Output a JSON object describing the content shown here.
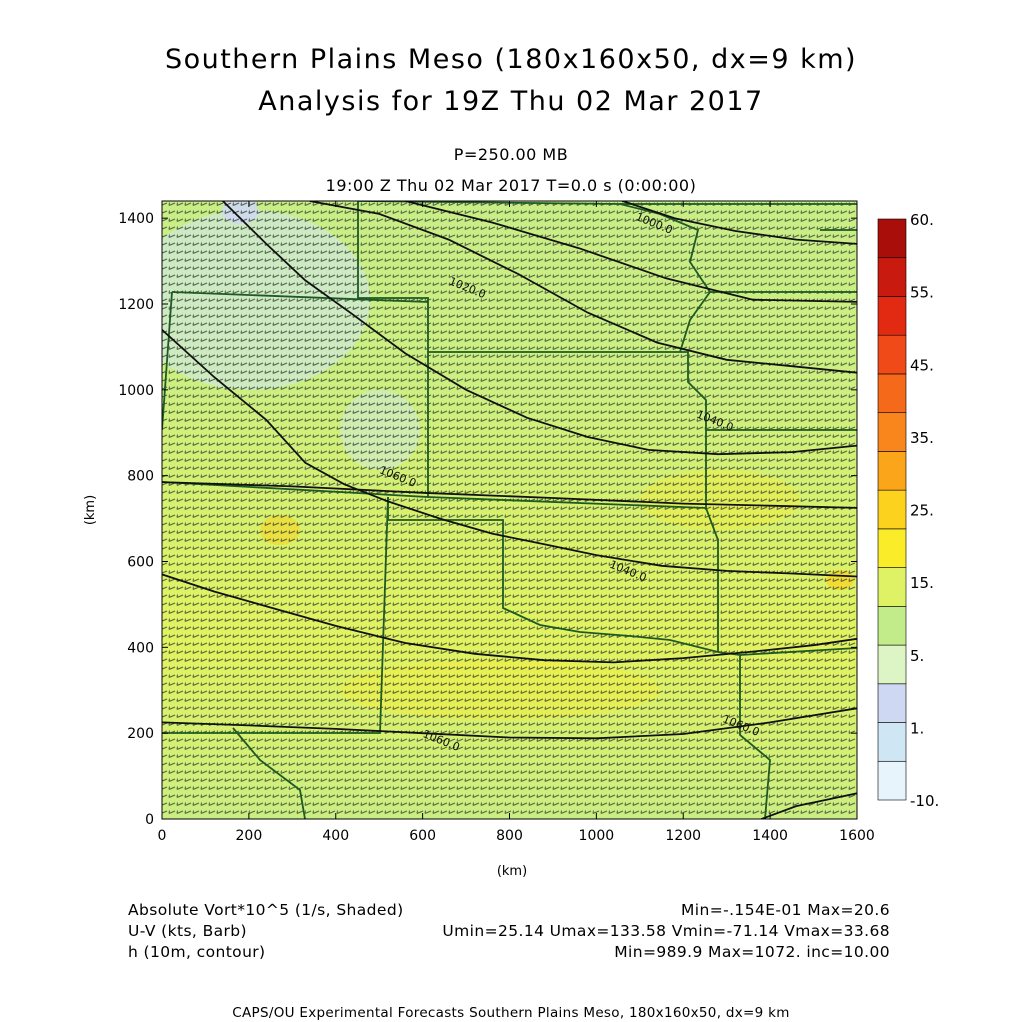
{
  "header": {
    "title_line1": "Southern Plains Meso (180x160x50, dx=9 km)",
    "title_line2": "Analysis for 19Z Thu 02 Mar 2017",
    "level": "P=250.00 MB",
    "time": "19:00 Z Thu 02 Mar 2017    T=0.0 s (0:00:00)"
  },
  "info": {
    "vort_label": "Absolute Vort*10^5 (1/s, Shaded)",
    "vort_stats": "Min=-.154E-01 Max=20.6",
    "wind_label": "U-V (kts, Barb)",
    "wind_stats": "Umin=25.14 Umax=133.58 Vmin=-71.14 Vmax=33.68",
    "h_label": "h (10m, contour)",
    "h_stats": "Min=989.9 Max=1072. inc=10.00"
  },
  "footer": "CAPS/OU Experimental Forecasts  Southern Plains Meso, 180x160x50, dx=9 km",
  "chart_data": {
    "type": "heatmap",
    "xlabel": "(km)",
    "ylabel": "(km)",
    "xlim": [
      0,
      1600
    ],
    "ylim": [
      0,
      1440
    ],
    "x_ticks": [
      "0",
      "200",
      "400",
      "600",
      "800",
      "1000",
      "1200",
      "1400",
      "1600"
    ],
    "y_ticks": [
      "0",
      "200",
      "400",
      "600",
      "800",
      "1000",
      "1200",
      "1400"
    ],
    "colorbar": {
      "labels": [
        "-10.",
        "1.",
        "5.",
        "15.",
        "25.",
        "35.",
        "45.",
        "55.",
        "60."
      ],
      "colors": [
        "#e8f4fb",
        "#cfe6f5",
        "#cfd8f2",
        "#ddf5c5",
        "#c2ec8a",
        "#dff266",
        "#fbec2a",
        "#fcd21e",
        "#fba51a",
        "#f8861c",
        "#f46a1a",
        "#ef4a17",
        "#e22a12",
        "#c81a0e",
        "#aa0e0a"
      ]
    },
    "contours": [
      {
        "label": "1000.0",
        "points": [
          [
            0,
            1140
          ],
          [
            120,
            1030
          ],
          [
            240,
            930
          ],
          [
            330,
            830
          ],
          [
            420,
            780
          ],
          [
            520,
            740
          ],
          [
            640,
            700
          ],
          [
            760,
            665
          ],
          [
            880,
            640
          ],
          [
            1000,
            615
          ],
          [
            1150,
            590
          ],
          [
            1300,
            578
          ],
          [
            1450,
            572
          ],
          [
            1600,
            565
          ]
        ]
      },
      {
        "label": "1020.0",
        "points": [
          [
            140,
            1440
          ],
          [
            240,
            1340
          ],
          [
            330,
            1255
          ],
          [
            440,
            1175
          ],
          [
            560,
            1085
          ],
          [
            700,
            1000
          ],
          [
            840,
            935
          ],
          [
            980,
            890
          ],
          [
            1120,
            860
          ],
          [
            1280,
            850
          ],
          [
            1450,
            855
          ],
          [
            1600,
            870
          ]
        ]
      },
      {
        "label": "1040.0",
        "points": [
          [
            0,
            570
          ],
          [
            120,
            530
          ],
          [
            260,
            490
          ],
          [
            400,
            450
          ],
          [
            560,
            410
          ],
          [
            720,
            385
          ],
          [
            880,
            370
          ],
          [
            1040,
            365
          ],
          [
            1200,
            375
          ],
          [
            1360,
            390
          ],
          [
            1500,
            405
          ],
          [
            1600,
            420
          ]
        ]
      },
      {
        "label": "1060.0",
        "points": [
          [
            0,
            225
          ],
          [
            200,
            218
          ],
          [
            400,
            210
          ],
          [
            600,
            200
          ],
          [
            800,
            190
          ],
          [
            1000,
            188
          ],
          [
            1200,
            198
          ],
          [
            1400,
            225
          ],
          [
            1600,
            258
          ]
        ]
      },
      {
        "label": "1060.0",
        "points": [
          [
            340,
            1440
          ],
          [
            500,
            1410
          ],
          [
            660,
            1350
          ],
          [
            820,
            1270
          ],
          [
            980,
            1180
          ],
          [
            1140,
            1110
          ],
          [
            1300,
            1070
          ],
          [
            1450,
            1055
          ],
          [
            1600,
            1040
          ]
        ]
      },
      {
        "label": "",
        "points": [
          [
            560,
            1440
          ],
          [
            760,
            1390
          ],
          [
            960,
            1330
          ],
          [
            1160,
            1260
          ],
          [
            1360,
            1210
          ],
          [
            1600,
            1205
          ]
        ]
      },
      {
        "label": "1060.0",
        "points": [
          [
            1060,
            1440
          ],
          [
            1180,
            1400
          ],
          [
            1320,
            1370
          ],
          [
            1460,
            1350
          ],
          [
            1600,
            1340
          ]
        ]
      },
      {
        "label": "",
        "points": [
          [
            0,
            785
          ],
          [
            300,
            775
          ],
          [
            600,
            760
          ],
          [
            900,
            748
          ],
          [
            1200,
            735
          ],
          [
            1400,
            730
          ],
          [
            1600,
            725
          ]
        ]
      },
      {
        "label": "",
        "points": [
          [
            1380,
            0
          ],
          [
            1460,
            30
          ],
          [
            1530,
            45
          ],
          [
            1600,
            60
          ]
        ]
      }
    ],
    "contour_labels": [
      {
        "text": "1000.0",
        "x": 1130,
        "y": 1380
      },
      {
        "text": "1020.0",
        "x": 700,
        "y": 1230
      },
      {
        "text": "1040.0",
        "x": 1270,
        "y": 920
      },
      {
        "text": "1060.0",
        "x": 540,
        "y": 790
      },
      {
        "text": "1040.0",
        "x": 1070,
        "y": 570
      },
      {
        "text": "1060.0",
        "x": 640,
        "y": 175
      },
      {
        "text": "1060.0",
        "x": 1330,
        "y": 210
      }
    ]
  }
}
